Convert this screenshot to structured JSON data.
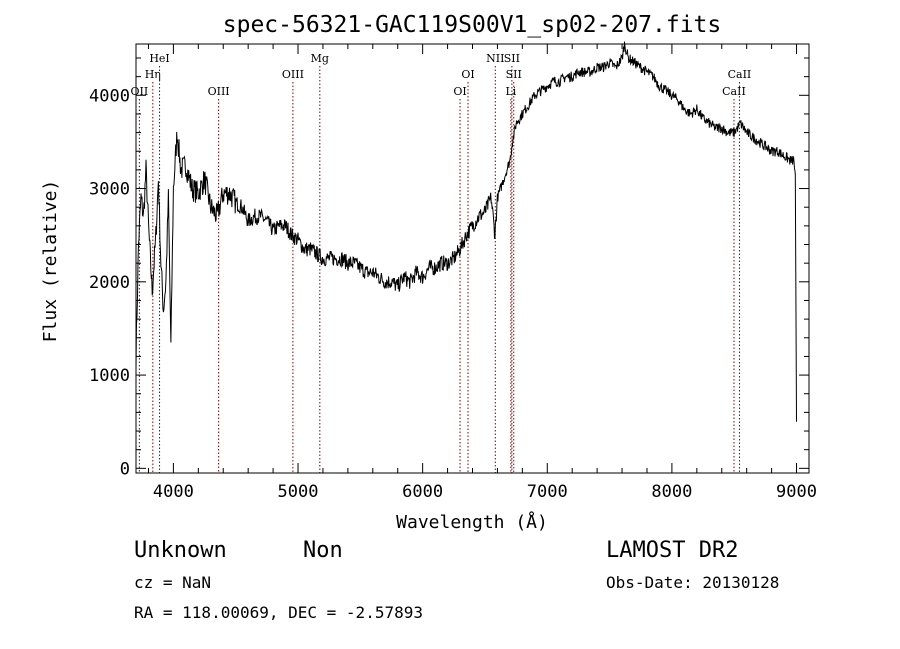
{
  "chart_data": {
    "type": "line",
    "title": "spec-56321-GAC119S00V1_sp02-207.fits",
    "xlabel": "Wavelength (Å)",
    "ylabel": "Flux (relative)",
    "xlim": [
      3700,
      9100
    ],
    "ylim": [
      -50,
      4550
    ],
    "xticks": [
      4000,
      5000,
      6000,
      7000,
      8000,
      9000
    ],
    "yticks": [
      0,
      1000,
      2000,
      3000,
      4000
    ],
    "xtick_labels": [
      "4000",
      "5000",
      "6000",
      "7000",
      "8000",
      "9000"
    ],
    "ytick_labels": [
      "0",
      "1000",
      "2000",
      "3000",
      "4000"
    ],
    "grid": false,
    "line_color": "#000000",
    "marker_color": "#8b0000",
    "x": [
      3700,
      3720,
      3740,
      3760,
      3780,
      3800,
      3830,
      3860,
      3880,
      3900,
      3920,
      3940,
      3960,
      3980,
      4000,
      4030,
      4060,
      4100,
      4150,
      4200,
      4250,
      4300,
      4350,
      4400,
      4450,
      4500,
      4550,
      4600,
      4650,
      4700,
      4750,
      4800,
      4850,
      4900,
      4950,
      5000,
      5050,
      5100,
      5150,
      5200,
      5250,
      5300,
      5350,
      5400,
      5450,
      5500,
      5550,
      5600,
      5650,
      5700,
      5750,
      5800,
      5850,
      5900,
      5950,
      6000,
      6050,
      6100,
      6150,
      6200,
      6250,
      6300,
      6350,
      6400,
      6450,
      6500,
      6550,
      6580,
      6600,
      6650,
      6700,
      6720,
      6750,
      6800,
      6850,
      6900,
      6950,
      7000,
      7050,
      7100,
      7150,
      7200,
      7250,
      7300,
      7350,
      7400,
      7450,
      7500,
      7550,
      7600,
      7620,
      7650,
      7700,
      7750,
      7800,
      7850,
      7900,
      7950,
      8000,
      8050,
      8100,
      8150,
      8200,
      8250,
      8300,
      8350,
      8400,
      8450,
      8500,
      8550,
      8600,
      8650,
      8700,
      8750,
      8800,
      8850,
      8900,
      8950,
      8980,
      8990,
      9000
    ],
    "y": [
      1200,
      2400,
      2900,
      2700,
      3200,
      2600,
      1900,
      2500,
      3100,
      2200,
      1700,
      2000,
      2900,
      1300,
      3000,
      3600,
      3200,
      3250,
      3000,
      2950,
      3100,
      2800,
      2700,
      2950,
      2950,
      2850,
      2800,
      2650,
      2700,
      2700,
      2650,
      2550,
      2600,
      2600,
      2500,
      2450,
      2350,
      2350,
      2300,
      2250,
      2250,
      2250,
      2250,
      2200,
      2200,
      2150,
      2100,
      2100,
      2050,
      2000,
      2000,
      1950,
      2050,
      2000,
      2100,
      2050,
      2150,
      2150,
      2200,
      2200,
      2250,
      2350,
      2500,
      2600,
      2700,
      2750,
      2900,
      2500,
      2900,
      3100,
      3300,
      3500,
      3700,
      3800,
      3900,
      4000,
      4050,
      4100,
      4150,
      4150,
      4200,
      4200,
      4250,
      4250,
      4250,
      4300,
      4300,
      4350,
      4300,
      4400,
      4550,
      4400,
      4350,
      4300,
      4250,
      4200,
      4100,
      4050,
      4000,
      3950,
      3850,
      3800,
      3850,
      3750,
      3700,
      3650,
      3650,
      3600,
      3600,
      3700,
      3600,
      3550,
      3500,
      3450,
      3400,
      3400,
      3350,
      3300,
      3300,
      3100,
      500
    ],
    "lines": [
      {
        "name": "OII",
        "wavelength": 3727,
        "row": 3
      },
      {
        "name": "Hη",
        "wavelength": 3835,
        "row": 2
      },
      {
        "name": "HeI",
        "wavelength": 3889,
        "row": 1
      },
      {
        "name": "OIII",
        "wavelength": 4363,
        "row": 3
      },
      {
        "name": "OIII",
        "wavelength": 4959,
        "row": 2
      },
      {
        "name": "Mg",
        "wavelength": 5175,
        "row": 1
      },
      {
        "name": "OI",
        "wavelength": 6300,
        "row": 3
      },
      {
        "name": "OI",
        "wavelength": 6364,
        "row": 2
      },
      {
        "name": "NII",
        "wavelength": 6583,
        "row": 1
      },
      {
        "name": "SII",
        "wavelength": 6716,
        "row": 1
      },
      {
        "name": "SII",
        "wavelength": 6731,
        "row": 2
      },
      {
        "name": "Li",
        "wavelength": 6708,
        "row": 3
      },
      {
        "name": "CaII",
        "wavelength": 8498,
        "row": 3
      },
      {
        "name": "CaII",
        "wavelength": 8542,
        "row": 2
      }
    ]
  },
  "info": {
    "object_type": "Unknown",
    "subclass": "Non",
    "survey": "LAMOST DR2",
    "cz": "cz = NaN",
    "obs_date": "Obs-Date: 20130128",
    "coords": "RA = 118.00069, DEC =  -2.57893"
  }
}
